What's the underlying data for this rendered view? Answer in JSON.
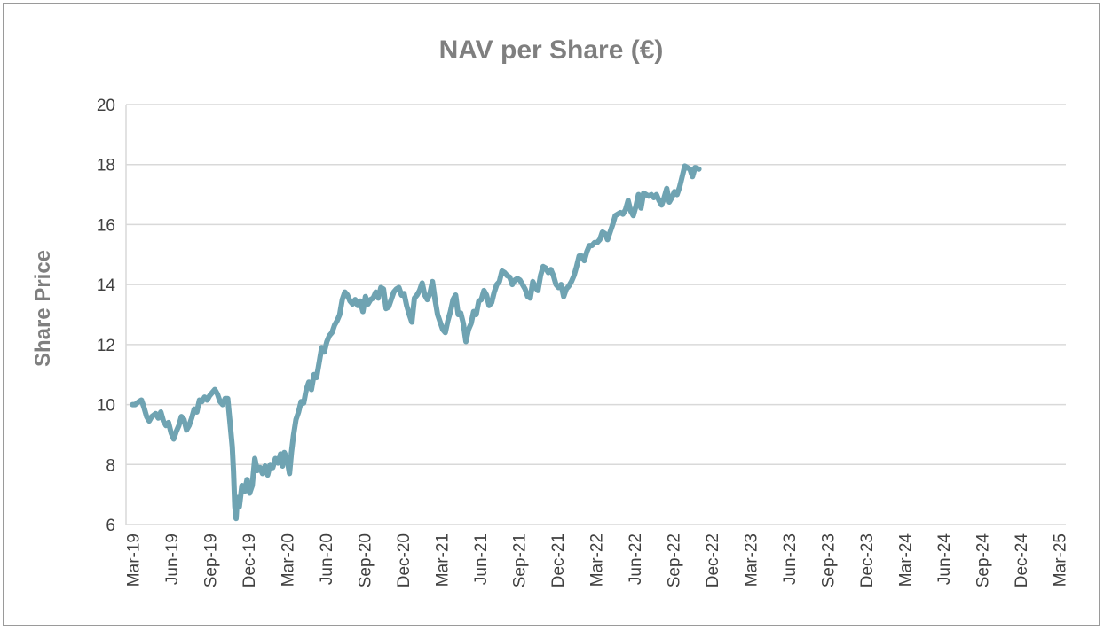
{
  "chart_data": {
    "type": "line",
    "title": "NAV per Share (€)",
    "xlabel": "",
    "ylabel": "Share Price",
    "ylim": [
      6,
      20
    ],
    "yticks": [
      6,
      8,
      10,
      12,
      14,
      16,
      18,
      20
    ],
    "grid": true,
    "line_color": "#6FA3B2",
    "x_start": "2019-03",
    "x_end": "2025-04",
    "xtick_labels": [
      "Mar-19",
      "Jun-19",
      "Sep-19",
      "Dec-19",
      "Mar-20",
      "Jun-20",
      "Sep-20",
      "Dec-20",
      "Mar-21",
      "Jun-21",
      "Sep-21",
      "Dec-21",
      "Mar-22",
      "Jun-22",
      "Sep-22",
      "Dec-22",
      "Mar-23",
      "Jun-23",
      "Sep-23",
      "Dec-23",
      "Mar-24",
      "Jun-24",
      "Sep-24",
      "Dec-24",
      "Mar-25"
    ],
    "series": [
      {
        "name": "NAV per Share (€)",
        "points": [
          [
            0.5,
            10.0
          ],
          [
            0.7,
            10.0
          ],
          [
            1.0,
            10.1
          ],
          [
            1.2,
            10.15
          ],
          [
            1.4,
            9.9
          ],
          [
            1.6,
            9.6
          ],
          [
            1.8,
            9.45
          ],
          [
            2.0,
            9.6
          ],
          [
            2.3,
            9.7
          ],
          [
            2.5,
            9.55
          ],
          [
            2.7,
            9.75
          ],
          [
            2.9,
            9.45
          ],
          [
            3.1,
            9.3
          ],
          [
            3.3,
            9.4
          ],
          [
            3.5,
            9.05
          ],
          [
            3.7,
            8.85
          ],
          [
            3.9,
            9.1
          ],
          [
            4.1,
            9.3
          ],
          [
            4.3,
            9.6
          ],
          [
            4.5,
            9.5
          ],
          [
            4.7,
            9.15
          ],
          [
            4.9,
            9.3
          ],
          [
            5.1,
            9.55
          ],
          [
            5.3,
            9.85
          ],
          [
            5.5,
            9.75
          ],
          [
            5.7,
            10.15
          ],
          [
            5.9,
            10.1
          ],
          [
            6.1,
            10.25
          ],
          [
            6.3,
            10.15
          ],
          [
            6.5,
            10.3
          ],
          [
            6.7,
            10.4
          ],
          [
            6.9,
            10.5
          ],
          [
            7.1,
            10.35
          ],
          [
            7.3,
            10.1
          ],
          [
            7.5,
            10.0
          ],
          [
            7.7,
            10.2
          ],
          [
            7.9,
            10.2
          ],
          [
            8.1,
            9.3
          ],
          [
            8.25,
            8.6
          ],
          [
            8.35,
            7.8
          ],
          [
            8.45,
            6.6
          ],
          [
            8.55,
            6.2
          ],
          [
            8.65,
            6.9
          ],
          [
            8.8,
            6.6
          ],
          [
            9.0,
            7.3
          ],
          [
            9.2,
            7.1
          ],
          [
            9.4,
            7.5
          ],
          [
            9.6,
            7.05
          ],
          [
            9.8,
            7.3
          ],
          [
            10.0,
            8.2
          ],
          [
            10.2,
            7.8
          ],
          [
            10.4,
            7.9
          ],
          [
            10.6,
            7.7
          ],
          [
            10.8,
            7.95
          ],
          [
            11.0,
            7.65
          ],
          [
            11.2,
            8.0
          ],
          [
            11.4,
            7.9
          ],
          [
            11.6,
            8.2
          ],
          [
            11.8,
            8.05
          ],
          [
            12.0,
            8.35
          ],
          [
            12.15,
            7.95
          ],
          [
            12.3,
            8.4
          ],
          [
            12.5,
            8.2
          ],
          [
            12.7,
            7.7
          ],
          [
            12.85,
            8.4
          ],
          [
            13.0,
            8.95
          ],
          [
            13.2,
            9.5
          ],
          [
            13.4,
            9.75
          ],
          [
            13.6,
            10.1
          ],
          [
            13.8,
            10.05
          ],
          [
            14.0,
            10.5
          ],
          [
            14.2,
            10.75
          ],
          [
            14.4,
            10.5
          ],
          [
            14.6,
            11.0
          ],
          [
            14.8,
            10.9
          ],
          [
            15.0,
            11.4
          ],
          [
            15.2,
            11.9
          ],
          [
            15.4,
            11.75
          ],
          [
            15.6,
            12.1
          ],
          [
            15.8,
            12.3
          ],
          [
            16.0,
            12.4
          ],
          [
            16.2,
            12.65
          ],
          [
            16.4,
            12.8
          ],
          [
            16.6,
            13.0
          ],
          [
            16.8,
            13.5
          ],
          [
            17.0,
            13.75
          ],
          [
            17.2,
            13.65
          ],
          [
            17.4,
            13.45
          ],
          [
            17.6,
            13.35
          ],
          [
            17.8,
            13.5
          ],
          [
            18.0,
            13.3
          ],
          [
            18.2,
            13.45
          ],
          [
            18.4,
            13.1
          ],
          [
            18.6,
            13.6
          ],
          [
            18.8,
            13.35
          ],
          [
            19.0,
            13.5
          ],
          [
            19.2,
            13.55
          ],
          [
            19.4,
            13.75
          ],
          [
            19.6,
            13.55
          ],
          [
            19.8,
            13.9
          ],
          [
            20.0,
            13.85
          ],
          [
            20.2,
            13.2
          ],
          [
            20.4,
            13.25
          ],
          [
            20.6,
            13.5
          ],
          [
            20.8,
            13.75
          ],
          [
            21.0,
            13.85
          ],
          [
            21.2,
            13.9
          ],
          [
            21.4,
            13.65
          ],
          [
            21.6,
            13.7
          ],
          [
            21.8,
            13.3
          ],
          [
            22.0,
            13.0
          ],
          [
            22.2,
            12.75
          ],
          [
            22.4,
            13.55
          ],
          [
            22.6,
            13.65
          ],
          [
            22.8,
            13.8
          ],
          [
            23.0,
            14.05
          ],
          [
            23.2,
            13.65
          ],
          [
            23.4,
            13.5
          ],
          [
            23.6,
            13.7
          ],
          [
            23.8,
            14.1
          ],
          [
            24.0,
            13.5
          ],
          [
            24.2,
            13.0
          ],
          [
            24.4,
            12.75
          ],
          [
            24.6,
            12.5
          ],
          [
            24.8,
            12.4
          ],
          [
            25.0,
            12.8
          ],
          [
            25.2,
            13.1
          ],
          [
            25.4,
            13.5
          ],
          [
            25.6,
            13.65
          ],
          [
            25.8,
            13.0
          ],
          [
            26.0,
            13.05
          ],
          [
            26.2,
            12.7
          ],
          [
            26.4,
            12.1
          ],
          [
            26.6,
            12.5
          ],
          [
            26.8,
            12.7
          ],
          [
            27.0,
            13.1
          ],
          [
            27.2,
            13.0
          ],
          [
            27.4,
            13.45
          ],
          [
            27.6,
            13.5
          ],
          [
            27.8,
            13.8
          ],
          [
            28.0,
            13.65
          ],
          [
            28.2,
            13.3
          ],
          [
            28.4,
            13.4
          ],
          [
            28.6,
            13.75
          ],
          [
            28.8,
            14.0
          ],
          [
            29.0,
            14.1
          ],
          [
            29.2,
            14.45
          ],
          [
            29.4,
            14.4
          ],
          [
            29.6,
            14.3
          ],
          [
            29.8,
            14.25
          ],
          [
            30.0,
            14.0
          ],
          [
            30.2,
            14.15
          ],
          [
            30.4,
            14.2
          ],
          [
            30.6,
            14.15
          ],
          [
            30.8,
            14.0
          ],
          [
            31.0,
            13.85
          ],
          [
            31.2,
            13.6
          ],
          [
            31.4,
            13.55
          ],
          [
            31.6,
            14.1
          ],
          [
            31.8,
            13.9
          ],
          [
            32.0,
            13.8
          ],
          [
            32.2,
            14.3
          ],
          [
            32.4,
            14.6
          ],
          [
            32.6,
            14.55
          ],
          [
            32.8,
            14.4
          ],
          [
            33.0,
            14.5
          ],
          [
            33.2,
            14.3
          ],
          [
            33.4,
            14.0
          ],
          [
            33.6,
            13.9
          ],
          [
            33.8,
            14.0
          ],
          [
            34.0,
            13.6
          ],
          [
            34.2,
            13.85
          ],
          [
            34.4,
            13.95
          ],
          [
            34.6,
            14.1
          ],
          [
            34.8,
            14.3
          ],
          [
            35.0,
            14.6
          ],
          [
            35.2,
            14.95
          ],
          [
            35.4,
            14.95
          ],
          [
            35.6,
            14.8
          ],
          [
            35.8,
            15.1
          ],
          [
            36.0,
            15.3
          ],
          [
            36.2,
            15.3
          ],
          [
            36.4,
            15.4
          ],
          [
            36.6,
            15.4
          ],
          [
            36.8,
            15.5
          ],
          [
            37.0,
            15.75
          ],
          [
            37.2,
            15.7
          ],
          [
            37.4,
            15.5
          ],
          [
            37.6,
            15.75
          ],
          [
            37.8,
            16.0
          ],
          [
            38.0,
            16.3
          ],
          [
            38.2,
            16.35
          ],
          [
            38.4,
            16.4
          ],
          [
            38.6,
            16.35
          ],
          [
            38.8,
            16.5
          ],
          [
            39.0,
            16.8
          ],
          [
            39.2,
            16.45
          ],
          [
            39.4,
            16.3
          ],
          [
            39.6,
            16.6
          ],
          [
            39.8,
            17.0
          ],
          [
            40.0,
            16.55
          ],
          [
            40.2,
            17.05
          ],
          [
            40.4,
            17.0
          ],
          [
            40.6,
            16.95
          ],
          [
            40.8,
            17.0
          ],
          [
            41.0,
            16.9
          ],
          [
            41.2,
            17.0
          ],
          [
            41.4,
            16.8
          ],
          [
            41.6,
            16.65
          ],
          [
            41.8,
            16.9
          ],
          [
            42.0,
            17.2
          ],
          [
            42.2,
            16.75
          ],
          [
            42.4,
            16.9
          ],
          [
            42.6,
            17.1
          ],
          [
            42.8,
            17.0
          ],
          [
            43.0,
            17.25
          ],
          [
            43.2,
            17.6
          ],
          [
            43.4,
            17.95
          ],
          [
            43.6,
            17.9
          ],
          [
            43.8,
            17.85
          ],
          [
            44.0,
            17.6
          ],
          [
            44.2,
            17.9
          ],
          [
            44.5,
            17.85
          ]
        ]
      }
    ]
  }
}
